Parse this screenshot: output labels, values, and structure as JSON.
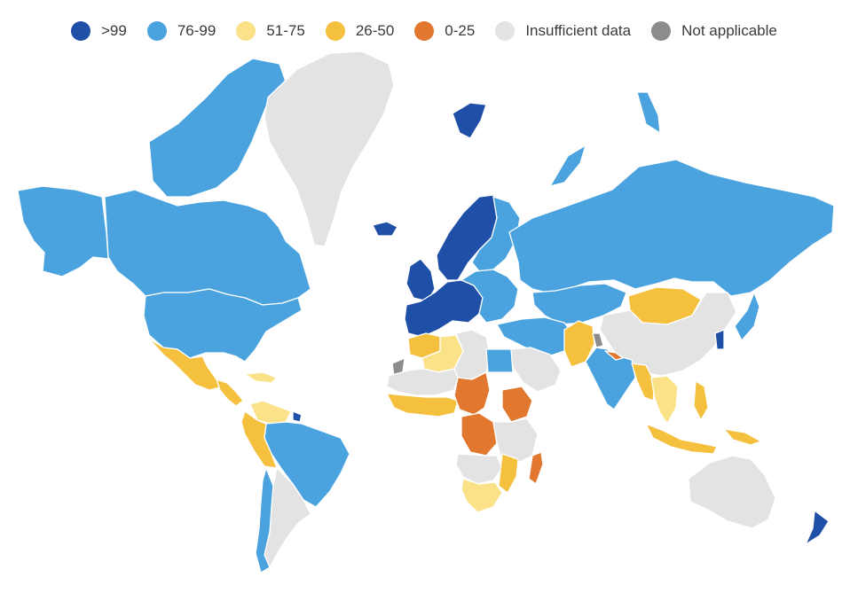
{
  "legend": {
    "items": [
      {
        "label": ">99",
        "color": "#1f4fa6"
      },
      {
        "label": "76-99",
        "color": "#4aa3de"
      },
      {
        "label": "51-75",
        "color": "#fbe289"
      },
      {
        "label": "26-50",
        "color": "#f4c03d"
      },
      {
        "label": "0-25",
        "color": "#e2772f"
      },
      {
        "label": "Insufficient data",
        "color": "#e3e3e3"
      },
      {
        "label": "Not applicable",
        "color": "#8c8c8c"
      }
    ]
  },
  "map": {
    "regions": [
      {
        "name": "alaska",
        "category": "76-99"
      },
      {
        "name": "canada",
        "category": "76-99"
      },
      {
        "name": "arctic-islands",
        "category": "76-99"
      },
      {
        "name": "greenland",
        "category": "Insufficient data"
      },
      {
        "name": "usa",
        "category": "76-99"
      },
      {
        "name": "mexico",
        "category": "26-50"
      },
      {
        "name": "central-america",
        "category": "26-50"
      },
      {
        "name": "caribbean",
        "category": "51-75"
      },
      {
        "name": "venezuela",
        "category": "51-75"
      },
      {
        "name": "guiana-coast",
        "category": ">99"
      },
      {
        "name": "brazil",
        "category": "76-99"
      },
      {
        "name": "colombia-peru",
        "category": "26-50"
      },
      {
        "name": "southern-cone",
        "category": "Insufficient data"
      },
      {
        "name": "chile",
        "category": "76-99"
      },
      {
        "name": "iceland",
        "category": ">99"
      },
      {
        "name": "svalbard",
        "category": ">99"
      },
      {
        "name": "scandinavia",
        "category": ">99"
      },
      {
        "name": "finland-baltics",
        "category": "76-99"
      },
      {
        "name": "uk-ireland",
        "category": ">99"
      },
      {
        "name": "western-europe",
        "category": ">99"
      },
      {
        "name": "central-europe",
        "category": "76-99"
      },
      {
        "name": "russia",
        "category": "76-99"
      },
      {
        "name": "novaya-zemlya",
        "category": "76-99"
      },
      {
        "name": "russian-arctic-islands",
        "category": "76-99"
      },
      {
        "name": "central-asia",
        "category": "76-99"
      },
      {
        "name": "mongolia",
        "category": "26-50"
      },
      {
        "name": "china",
        "category": "Insufficient data"
      },
      {
        "name": "middle-east",
        "category": "76-99"
      },
      {
        "name": "arabian-peninsula",
        "category": "Insufficient data"
      },
      {
        "name": "pakistan",
        "category": "26-50"
      },
      {
        "name": "kashmir",
        "category": "Not applicable"
      },
      {
        "name": "india",
        "category": "76-99"
      },
      {
        "name": "nepal",
        "category": "0-25"
      },
      {
        "name": "bangladesh-myanmar",
        "category": "26-50"
      },
      {
        "name": "thailand-indochina",
        "category": "51-75"
      },
      {
        "name": "korea-japan",
        "category": ">99"
      },
      {
        "name": "japan",
        "category": "76-99"
      },
      {
        "name": "indonesia",
        "category": "26-50"
      },
      {
        "name": "philippines",
        "category": "26-50"
      },
      {
        "name": "papua",
        "category": "26-50"
      },
      {
        "name": "australia",
        "category": "Insufficient data"
      },
      {
        "name": "new-zealand",
        "category": ">99"
      },
      {
        "name": "maghreb",
        "category": "26-50"
      },
      {
        "name": "algeria",
        "category": "51-75"
      },
      {
        "name": "north-africa",
        "category": "Insufficient data"
      },
      {
        "name": "western-sahara",
        "category": "Not applicable"
      },
      {
        "name": "egypt",
        "category": "76-99"
      },
      {
        "name": "west-africa",
        "category": "26-50"
      },
      {
        "name": "sahel",
        "category": "Insufficient data"
      },
      {
        "name": "chad-car",
        "category": "0-25"
      },
      {
        "name": "ethiopia",
        "category": "0-25"
      },
      {
        "name": "dr-congo",
        "category": "0-25"
      },
      {
        "name": "east-africa",
        "category": "Insufficient data"
      },
      {
        "name": "southern-africa",
        "category": "Insufficient data"
      },
      {
        "name": "mozambique",
        "category": "26-50"
      },
      {
        "name": "south-africa",
        "category": "51-75"
      },
      {
        "name": "madagascar",
        "category": "0-25"
      }
    ]
  }
}
